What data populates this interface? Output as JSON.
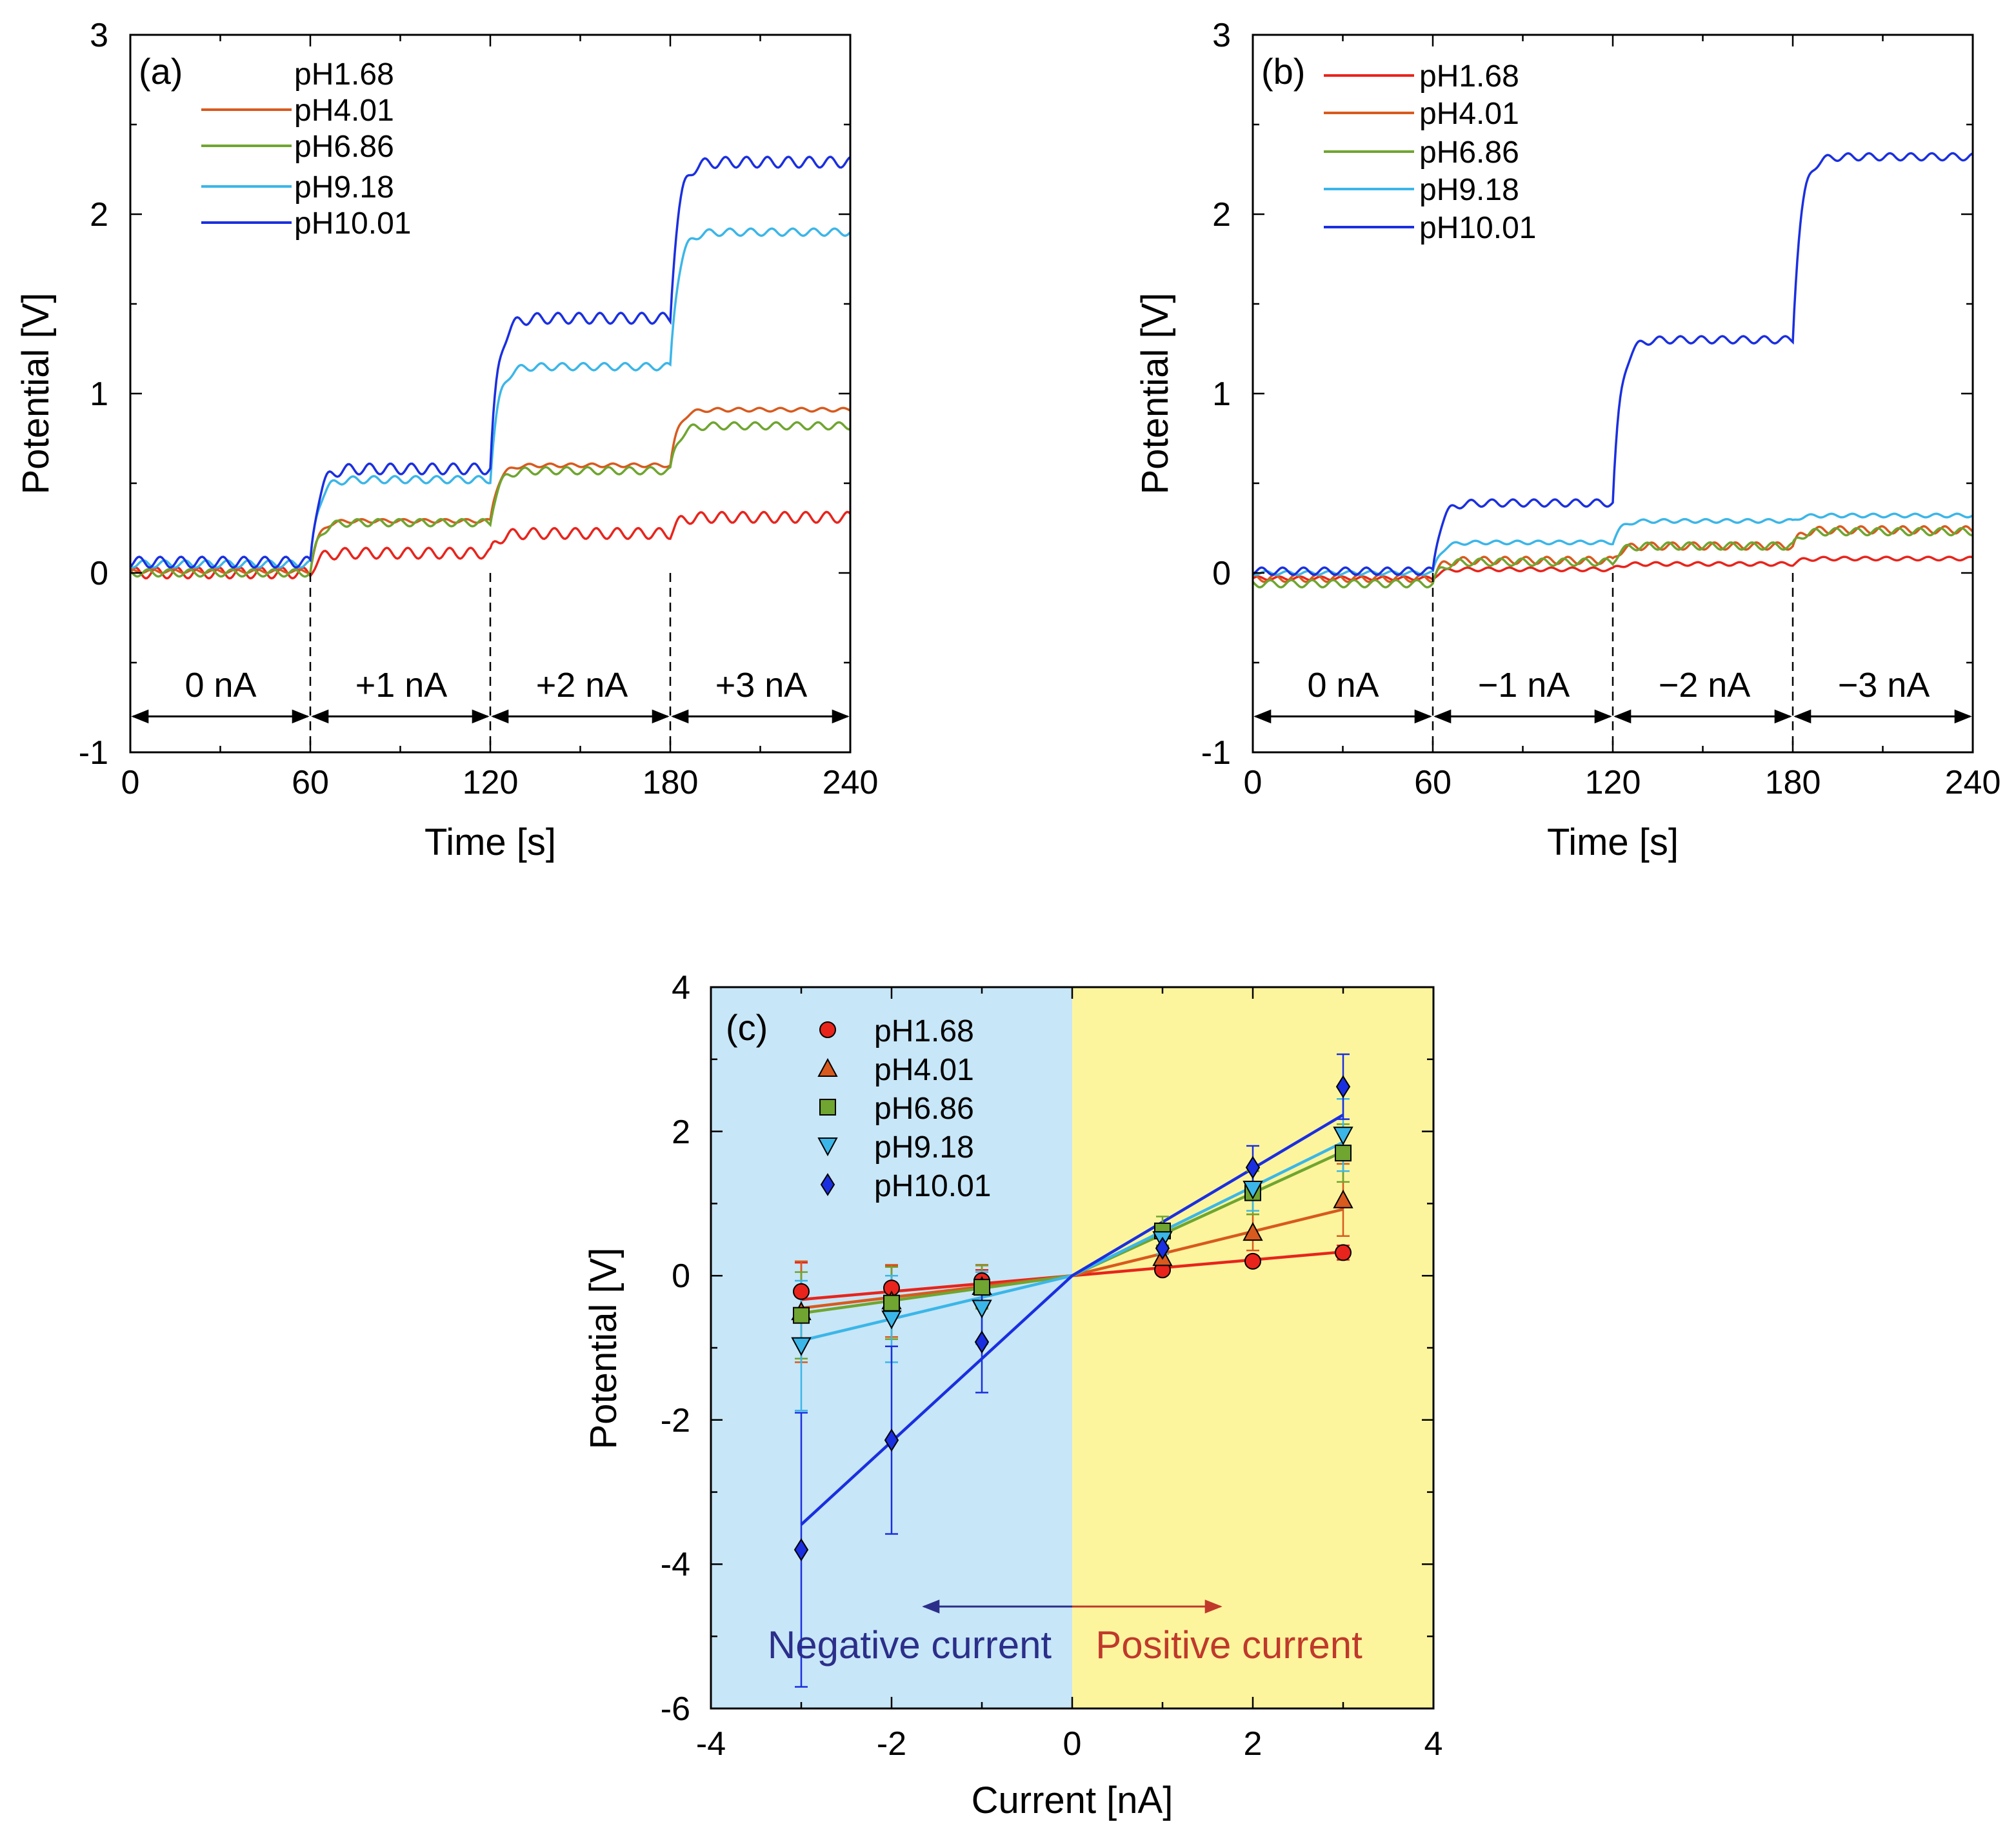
{
  "colors": {
    "ph168": "#e8241c",
    "ph401": "#d85a1e",
    "ph686": "#6fa530",
    "ph918": "#3bb6e8",
    "ph1001": "#1a2fe0",
    "negative_bg": "#c7e6f7",
    "positive_bg": "#fdf59e",
    "negative_text": "#2b2f8a",
    "positive_text": "#c0392b"
  },
  "chart_data": [
    {
      "type": "line",
      "panel_label": "(a)",
      "xlabel": "Time [s]",
      "ylabel": "Potential [V]",
      "xlim": [
        0,
        240
      ],
      "ylim": [
        -1,
        3
      ],
      "xticks": [
        "0",
        "60",
        "120",
        "180",
        "240"
      ],
      "yticks": [
        "-1",
        "0",
        "1",
        "2",
        "3"
      ],
      "segments": [
        "0 nA",
        "+1 nA",
        "+2 nA",
        "+3 nA"
      ],
      "segment_boundaries": [
        0,
        60,
        120,
        180,
        240
      ],
      "series": [
        {
          "name": "pH1.68",
          "key": "ph168",
          "levels": [
            0.0,
            0.11,
            0.22,
            0.31
          ],
          "wave": 0.03
        },
        {
          "name": "pH4.01",
          "key": "ph401",
          "levels": [
            0.01,
            0.29,
            0.6,
            0.91
          ],
          "wave": 0.01
        },
        {
          "name": "pH6.86",
          "key": "ph686",
          "levels": [
            0.0,
            0.28,
            0.57,
            0.82
          ],
          "wave": 0.02
        },
        {
          "name": "pH9.18",
          "key": "ph918",
          "levels": [
            0.05,
            0.52,
            1.15,
            1.9
          ],
          "wave": 0.02
        },
        {
          "name": "pH10.01",
          "key": "ph1001",
          "levels": [
            0.06,
            0.58,
            1.42,
            2.29
          ],
          "wave": 0.03
        }
      ]
    },
    {
      "type": "line",
      "panel_label": "(b)",
      "xlabel": "Time [s]",
      "ylabel": "Potential [V]",
      "xlim": [
        0,
        240
      ],
      "ylim": [
        -1,
        3
      ],
      "xticks": [
        "0",
        "60",
        "120",
        "180",
        "240"
      ],
      "yticks": [
        "-1",
        "0",
        "1",
        "2",
        "3"
      ],
      "segments": [
        "0 nA",
        "−1 nA",
        "−2 nA",
        "−3 nA"
      ],
      "segment_boundaries": [
        0,
        60,
        120,
        180,
        240
      ],
      "series": [
        {
          "name": "pH1.68",
          "key": "ph168",
          "levels": [
            -0.03,
            0.02,
            0.05,
            0.08
          ],
          "wave": 0.01
        },
        {
          "name": "pH4.01",
          "key": "ph401",
          "levels": [
            -0.03,
            0.07,
            0.15,
            0.24
          ],
          "wave": 0.02
        },
        {
          "name": "pH6.86",
          "key": "ph686",
          "levels": [
            -0.06,
            0.06,
            0.15,
            0.23
          ],
          "wave": 0.02
        },
        {
          "name": "pH9.18",
          "key": "ph918",
          "levels": [
            0.0,
            0.17,
            0.29,
            0.32
          ],
          "wave": 0.01
        },
        {
          "name": "pH10.01",
          "key": "ph1001",
          "levels": [
            0.01,
            0.39,
            1.3,
            2.32
          ],
          "wave": 0.02
        }
      ]
    },
    {
      "type": "scatter",
      "panel_label": "(c)",
      "xlabel": "Current [nA]",
      "ylabel": "Potential [V]",
      "xlim": [
        -4,
        4
      ],
      "ylim": [
        -6,
        4
      ],
      "xticks": [
        "-4",
        "-2",
        "0",
        "2",
        "4"
      ],
      "yticks": [
        "-6",
        "-4",
        "-2",
        "0",
        "2",
        "4"
      ],
      "annotations": {
        "negative": "Negative current",
        "positive": "Positive current"
      },
      "x": [
        -3,
        -2,
        -1,
        1,
        2,
        3
      ],
      "series": [
        {
          "name": "pH1.68",
          "key": "ph168",
          "marker": "circle",
          "y": [
            -0.22,
            -0.17,
            -0.07,
            0.08,
            0.2,
            0.32
          ],
          "err": [
            0.4,
            0.3,
            0.15,
            0.05,
            0.05,
            0.1
          ],
          "fit": [
            [
              -3,
              -0.33
            ],
            [
              0,
              0
            ],
            [
              3,
              0.33
            ]
          ]
        },
        {
          "name": "pH4.01",
          "key": "ph401",
          "marker": "triangle-up",
          "y": [
            -0.5,
            -0.35,
            -0.15,
            0.25,
            0.6,
            1.05
          ],
          "err": [
            0.7,
            0.5,
            0.3,
            0.15,
            0.25,
            0.5
          ],
          "fit": [
            [
              -3,
              -0.45
            ],
            [
              0,
              0
            ],
            [
              3,
              0.92
            ]
          ]
        },
        {
          "name": "pH6.86",
          "key": "ph686",
          "marker": "square",
          "y": [
            -0.55,
            -0.38,
            -0.16,
            0.62,
            1.15,
            1.7
          ],
          "err": [
            0.6,
            0.5,
            0.3,
            0.2,
            0.3,
            0.4
          ],
          "fit": [
            [
              -3,
              -0.52
            ],
            [
              0,
              0
            ],
            [
              3,
              1.72
            ]
          ]
        },
        {
          "name": "pH9.18",
          "key": "ph918",
          "marker": "triangle-down",
          "y": [
            -0.97,
            -0.6,
            -0.45,
            0.5,
            1.2,
            1.95
          ],
          "err": [
            0.9,
            0.6,
            0.5,
            0.2,
            0.3,
            0.5
          ],
          "fit": [
            [
              -3,
              -0.9
            ],
            [
              0,
              0
            ],
            [
              3,
              1.85
            ]
          ]
        },
        {
          "name": "pH10.01",
          "key": "ph1001",
          "marker": "diamond",
          "y": [
            -3.8,
            -2.28,
            -0.92,
            0.38,
            1.5,
            2.62
          ],
          "err": [
            1.9,
            1.3,
            0.7,
            0.3,
            0.3,
            0.45
          ],
          "fit": [
            [
              -3,
              -3.45
            ],
            [
              0,
              0
            ],
            [
              3,
              2.23
            ]
          ]
        }
      ]
    }
  ]
}
